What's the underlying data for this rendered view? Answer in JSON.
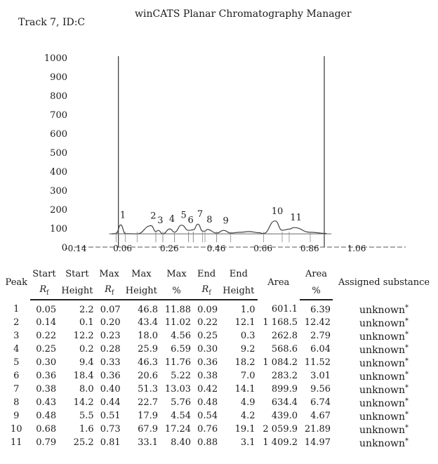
{
  "header": {
    "track": "Track 7, ID:C",
    "app_title": "winCATS Planar Chromatography Manager"
  },
  "chart_data": {
    "type": "line",
    "title": "",
    "xlabel": "",
    "ylabel": "",
    "ylim": [
      0,
      1000
    ],
    "y_ticks": [
      "0",
      "100",
      "200",
      "300",
      "400",
      "500",
      "600",
      "700",
      "800",
      "900",
      "1000"
    ],
    "x_ticks": [
      "-0.14",
      "0.06",
      "0.26",
      "0.46",
      "0.66",
      "0.86",
      "1.06"
    ],
    "xlim": [
      -0.14,
      1.06
    ],
    "baseline": 70,
    "start_line_x": 0.06,
    "front_line_x": 0.94,
    "peak_labels": [
      "1",
      "2",
      "3",
      "4",
      "5",
      "6",
      "7",
      "8",
      "9",
      "10",
      "11"
    ],
    "trace": {
      "x": [
        0.03,
        0.05,
        0.07,
        0.09,
        0.14,
        0.2,
        0.22,
        0.23,
        0.25,
        0.28,
        0.3,
        0.33,
        0.36,
        0.38,
        0.4,
        0.42,
        0.43,
        0.44,
        0.48,
        0.51,
        0.54,
        0.58,
        0.62,
        0.66,
        0.68,
        0.73,
        0.76,
        0.79,
        0.81,
        0.88,
        0.95
      ],
      "y": [
        70,
        72,
        117,
        71,
        70,
        113,
        82,
        88,
        70,
        96,
        79,
        116,
        88,
        91,
        121,
        84,
        84,
        93,
        74,
        88,
        74,
        78,
        82,
        76,
        72,
        138,
        89,
        95,
        103,
        78,
        72
      ]
    }
  },
  "table": {
    "headers": {
      "peak": "Peak",
      "start_rf_1": "Start",
      "start_h_1": "Start",
      "start_h_2": "Height",
      "max_rf_1": "Max",
      "max_h_1": "Max",
      "max_h_2": "Height",
      "max_pct_1": "Max",
      "max_pct_2": "%",
      "end_rf_1": "End",
      "end_h_1": "End",
      "end_h_2": "Height",
      "area": "Area",
      "area_pct_1": "Area",
      "area_pct_2": "%",
      "substance": "Assigned substance",
      "rf_letter": "R",
      "rf_sub": "f"
    },
    "star": "*",
    "rows": [
      [
        "1",
        "0.05",
        "2.2",
        "0.07",
        "46.8",
        "11.88",
        "0.09",
        "1.0",
        "601.1",
        "6.39",
        "unknown"
      ],
      [
        "2",
        "0.14",
        "0.1",
        "0.20",
        "43.4",
        "11.02",
        "0.22",
        "12.1",
        "1 168.5",
        "12.42",
        "unknown"
      ],
      [
        "3",
        "0.22",
        "12.2",
        "0.23",
        "18.0",
        "4.56",
        "0.25",
        "0.3",
        "262.8",
        "2.79",
        "unknown"
      ],
      [
        "4",
        "0.25",
        "0.2",
        "0.28",
        "25.9",
        "6.59",
        "0.30",
        "9.2",
        "568.6",
        "6.04",
        "unknown"
      ],
      [
        "5",
        "0.30",
        "9.4",
        "0.33",
        "46.3",
        "11.76",
        "0.36",
        "18.2",
        "1 084.2",
        "11.52",
        "unknown"
      ],
      [
        "6",
        "0.36",
        "18.4",
        "0.36",
        "20.6",
        "5.22",
        "0.38",
        "7.0",
        "283.2",
        "3.01",
        "unknown"
      ],
      [
        "7",
        "0.38",
        "8.0",
        "0.40",
        "51.3",
        "13.03",
        "0.42",
        "14.1",
        "899.9",
        "9.56",
        "unknown"
      ],
      [
        "8",
        "0.43",
        "14.2",
        "0.44",
        "22.7",
        "5.76",
        "0.48",
        "4.9",
        "634.4",
        "6.74",
        "unknown"
      ],
      [
        "9",
        "0.48",
        "5.5",
        "0.51",
        "17.9",
        "4.54",
        "0.54",
        "4.2",
        "439.0",
        "4.67",
        "unknown"
      ],
      [
        "10",
        "0.68",
        "1.6",
        "0.73",
        "67.9",
        "17.24",
        "0.76",
        "19.1",
        "2 059.9",
        "21.89",
        "unknown"
      ],
      [
        "11",
        "0.79",
        "25.2",
        "0.81",
        "33.1",
        "8.40",
        "0.88",
        "3.1",
        "1 409.2",
        "14.97",
        "unknown"
      ]
    ]
  }
}
